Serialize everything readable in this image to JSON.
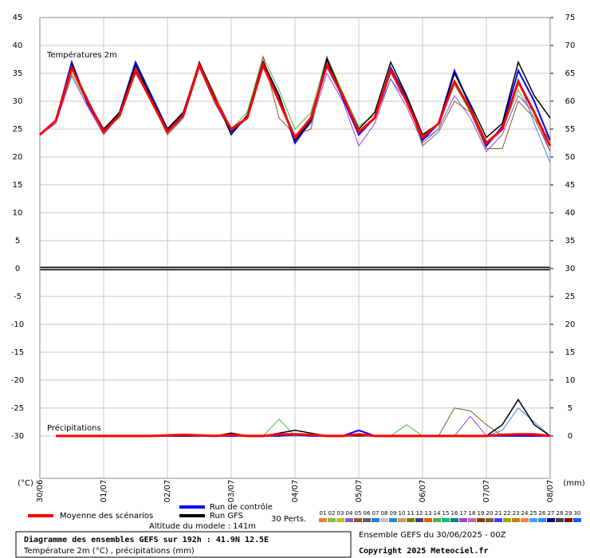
{
  "chart_data": {
    "type": "line",
    "temp_label": "Températures 2m",
    "precip_label": "Précipitations",
    "y_unit": "(°C)",
    "y2_unit": "(mm)",
    "ylim": [
      -37.6,
      45
    ],
    "yticks": [
      -30,
      -25,
      -20,
      -15,
      -10,
      -5,
      0,
      5,
      10,
      15,
      20,
      25,
      30,
      35,
      40,
      45
    ],
    "y2lim": [
      -7.6,
      75
    ],
    "y2ticks": [
      0,
      5,
      10,
      15,
      20,
      25,
      30,
      35,
      40,
      45,
      50,
      55,
      60,
      65,
      70,
      75
    ],
    "categories": [
      "30/06",
      "01/07",
      "02/07",
      "03/07",
      "04/07",
      "05/07",
      "06/07",
      "07/07",
      "08/07"
    ],
    "grid": true,
    "series": [
      {
        "name": "Moyenne des scénarios",
        "color": "#ff0000",
        "temperature": [
          24,
          26.5,
          36,
          30,
          24.5,
          27.5,
          35.5,
          30,
          24.5,
          27.5,
          36.5,
          30,
          25,
          27,
          36.5,
          30,
          23.5,
          27,
          36.5,
          31,
          24.5,
          27,
          35.5,
          30,
          23.5,
          26,
          33.5,
          28.5,
          22.5,
          25,
          33.5,
          28,
          22
        ],
        "precipitation": [
          null,
          0,
          0,
          0,
          0,
          0,
          0,
          0,
          0.1,
          0.2,
          0.1,
          0,
          0.2,
          0,
          0,
          0.3,
          0.3,
          0.2,
          0,
          0,
          0.3,
          0,
          0,
          0,
          0,
          0,
          0,
          0,
          0,
          0.2,
          0.3,
          0.3,
          0
        ]
      },
      {
        "name": "Run de contrôle",
        "color": "#0000ff",
        "temperature": [
          24,
          26.5,
          37,
          29.5,
          24.5,
          28,
          37,
          31,
          25,
          28,
          36.5,
          30,
          24.5,
          27,
          37,
          31,
          22.5,
          26.5,
          37.5,
          30.5,
          24,
          27,
          36,
          30.5,
          23,
          26,
          35.5,
          29,
          22,
          25.5,
          35.5,
          30,
          23
        ],
        "precipitation": [
          null,
          0,
          0,
          0,
          0,
          0,
          0,
          0,
          0,
          0,
          0,
          0,
          0,
          0,
          0,
          0,
          0.2,
          0,
          0,
          0,
          1,
          0,
          0,
          0,
          0,
          0,
          0,
          0,
          0,
          0,
          0,
          0,
          0
        ]
      },
      {
        "name": "Run GFS",
        "color": "#000000",
        "temperature": [
          24,
          26.5,
          36.5,
          30,
          25,
          28,
          36.5,
          30.5,
          25,
          28,
          37,
          30.5,
          24,
          27.5,
          37,
          31,
          23,
          26.5,
          37.5,
          31,
          25,
          28,
          37,
          31,
          24,
          26,
          35,
          29.5,
          23.5,
          26,
          37,
          31,
          27
        ],
        "precipitation": [
          null,
          0,
          0,
          0,
          0,
          0,
          0,
          0,
          0,
          0,
          0,
          0,
          0.5,
          0,
          0,
          0.5,
          1,
          0.5,
          0,
          0,
          0,
          0,
          0,
          0,
          0,
          0,
          0,
          0,
          0,
          2,
          6.5,
          2,
          0
        ]
      }
    ],
    "perturbations_label": "30 Perts.",
    "perturbations": [
      {
        "name": "01",
        "color": "#f08030"
      },
      {
        "name": "02",
        "color": "#80c040"
      },
      {
        "name": "03",
        "color": "#c0c020"
      },
      {
        "name": "04",
        "color": "#8060c0"
      },
      {
        "name": "05",
        "color": "#a05020"
      },
      {
        "name": "06",
        "color": "#606060"
      },
      {
        "name": "07",
        "color": "#2080e0"
      },
      {
        "name": "08",
        "color": "#c0c0c0"
      },
      {
        "name": "09",
        "color": "#2090c0"
      },
      {
        "name": "10",
        "color": "#c0a060"
      },
      {
        "name": "11",
        "color": "#808000"
      },
      {
        "name": "12",
        "color": "#404080"
      },
      {
        "name": "13",
        "color": "#e06000"
      },
      {
        "name": "14",
        "color": "#40c040",
        "temperature": [
          24,
          26,
          35,
          29.5,
          25,
          27,
          35,
          31,
          24.5,
          28,
          37,
          31,
          25,
          28,
          38,
          32,
          25,
          28,
          38,
          31.5,
          25.5,
          27.5,
          36,
          31,
          23,
          26,
          33,
          28,
          22,
          25,
          32,
          27,
          23
        ],
        "precipitation": [
          null,
          0,
          0,
          0,
          0,
          0,
          0,
          0,
          0,
          0,
          0,
          0,
          0,
          0,
          0,
          3,
          0,
          0,
          0,
          0,
          0,
          0,
          0,
          2,
          0,
          0,
          0,
          0,
          0,
          0,
          0,
          0,
          0
        ]
      },
      {
        "name": "15",
        "color": "#00c080"
      },
      {
        "name": "16",
        "color": "#008080"
      },
      {
        "name": "17",
        "color": "#a040e0",
        "temperature": [
          24,
          26,
          34.5,
          29,
          24,
          27.5,
          35,
          30,
          24,
          27,
          36,
          29.5,
          24.5,
          27,
          36,
          30,
          23,
          26,
          35,
          30,
          22,
          26,
          34,
          29,
          22.5,
          25,
          31,
          27,
          21,
          24,
          31,
          28,
          21
        ],
        "precipitation": [
          null,
          0,
          0,
          0,
          0,
          0,
          0,
          0,
          0,
          0,
          0,
          0,
          0,
          0,
          0,
          0,
          0,
          0,
          0,
          0,
          0,
          0,
          0,
          0,
          0,
          0,
          0,
          3.5,
          0,
          0,
          0,
          0,
          0
        ]
      },
      {
        "name": "18",
        "color": "#c060c0"
      },
      {
        "name": "19",
        "color": "#804000"
      },
      {
        "name": "20",
        "color": "#8b5a2b",
        "temperature": [
          24,
          26.5,
          36,
          30,
          24.5,
          28,
          36,
          30,
          24,
          27,
          37,
          31,
          25,
          27,
          38,
          27,
          24,
          25,
          38,
          31,
          25,
          28,
          37,
          31,
          22,
          24.5,
          30,
          28,
          21.5,
          21.5,
          30,
          27,
          21
        ],
        "precipitation": [
          null,
          0,
          0,
          0,
          0,
          0,
          0,
          0,
          0,
          0,
          0,
          0,
          0,
          0,
          0,
          0,
          0,
          0,
          0,
          0,
          0,
          0,
          0,
          0,
          0,
          0,
          5,
          4.5,
          2,
          0,
          0,
          0,
          0
        ]
      },
      {
        "name": "21",
        "color": "#4040ff"
      },
      {
        "name": "22",
        "color": "#a0a000"
      },
      {
        "name": "23",
        "color": "#c08000"
      },
      {
        "name": "24",
        "color": "#ff8040"
      },
      {
        "name": "25",
        "color": "#40a0ff"
      },
      {
        "name": "26",
        "color": "#2a8cff",
        "temperature": [
          24,
          26.5,
          36,
          30.5,
          24.5,
          27.5,
          36.5,
          30,
          24.5,
          27,
          36,
          30.5,
          24.5,
          27,
          36.5,
          30.5,
          23,
          26.5,
          36,
          30.5,
          24,
          27,
          34,
          30,
          23,
          25,
          35,
          29,
          22.5,
          25,
          34,
          26,
          19
        ],
        "precipitation": [
          null,
          0,
          0,
          0,
          0,
          0,
          0,
          0,
          0,
          0,
          0,
          0,
          0,
          0,
          0,
          0,
          0,
          0,
          0,
          0,
          0,
          0,
          0,
          0,
          0,
          0,
          0,
          0,
          0,
          1,
          5,
          2.5,
          0
        ]
      },
      {
        "name": "27",
        "color": "#000080"
      },
      {
        "name": "28",
        "color": "#404040"
      },
      {
        "name": "29",
        "color": "#800000"
      },
      {
        "name": "30",
        "color": "#0060ff"
      }
    ],
    "altitude": "Altitude du modele : 141m",
    "title": "Diagramme des ensembles GEFS sur 192h : 41.9N 12.5E",
    "subtitle": "Température 2m (°C) , précipitations (mm)",
    "run_info": "Ensemble GEFS du 30/06/2025 - 00Z",
    "copyright": "Copyright 2025 Meteociel.fr"
  }
}
